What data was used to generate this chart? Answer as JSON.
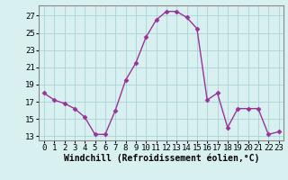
{
  "x": [
    0,
    1,
    2,
    3,
    4,
    5,
    6,
    7,
    8,
    9,
    10,
    11,
    12,
    13,
    14,
    15,
    16,
    17,
    18,
    19,
    20,
    21,
    22,
    23
  ],
  "y": [
    18.0,
    17.2,
    16.8,
    16.2,
    15.2,
    13.2,
    13.2,
    16.0,
    19.5,
    21.5,
    24.5,
    26.5,
    27.5,
    27.5,
    26.8,
    25.5,
    17.2,
    18.0,
    14.0,
    16.2,
    16.2,
    16.2,
    13.2,
    13.5
  ],
  "line_color": "#993399",
  "marker": "D",
  "marker_size": 2.5,
  "bg_color": "#d8f0f0",
  "grid_color": "#b0d8d8",
  "xlabel": "Windchill (Refroidissement éolien,°C)",
  "xlabel_fontsize": 7,
  "yticks": [
    13,
    15,
    17,
    19,
    21,
    23,
    25,
    27
  ],
  "xticks": [
    0,
    1,
    2,
    3,
    4,
    5,
    6,
    7,
    8,
    9,
    10,
    11,
    12,
    13,
    14,
    15,
    16,
    17,
    18,
    19,
    20,
    21,
    22,
    23
  ],
  "ylim": [
    12.5,
    28.2
  ],
  "xlim": [
    -0.5,
    23.5
  ],
  "tick_fontsize": 6.5,
  "line_width": 1.0
}
